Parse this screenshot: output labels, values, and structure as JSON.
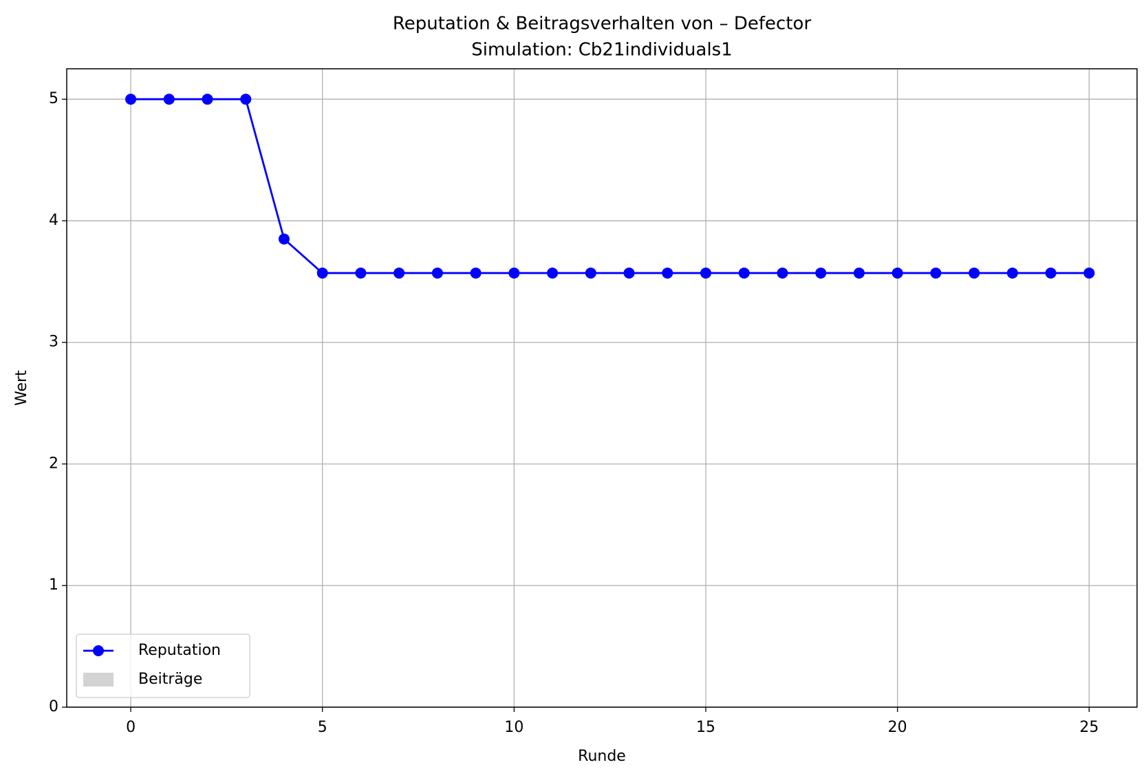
{
  "chart_data": {
    "type": "line",
    "title": "Reputation & Beitragsverhalten von – Defector",
    "subtitle": "Simulation: Cb21individuals1",
    "x_label": "Runde",
    "y_label": "Wert",
    "x": [
      0,
      1,
      2,
      3,
      4,
      5,
      6,
      7,
      8,
      9,
      10,
      11,
      12,
      13,
      14,
      15,
      16,
      17,
      18,
      19,
      20,
      21,
      22,
      23,
      24,
      25
    ],
    "series": [
      {
        "name": "Reputation",
        "color": "#0000ff",
        "type": "line",
        "values": [
          5,
          5,
          5,
          5,
          3.85,
          3.57,
          3.57,
          3.57,
          3.57,
          3.57,
          3.57,
          3.57,
          3.57,
          3.57,
          3.57,
          3.57,
          3.57,
          3.57,
          3.57,
          3.57,
          3.57,
          3.57,
          3.57,
          3.57,
          3.57,
          3.57
        ]
      },
      {
        "name": "Beiträge",
        "color": "#d3d3d3",
        "type": "bar",
        "values": [
          0,
          0,
          0,
          0,
          0,
          0,
          0,
          0,
          0,
          0,
          0,
          0,
          0,
          0,
          0,
          0,
          0,
          0,
          0,
          0,
          0,
          0,
          0,
          0,
          0,
          0
        ]
      }
    ],
    "xlim": [
      -1.67,
      26.25
    ],
    "xticks": [
      0,
      5,
      10,
      15,
      20,
      25
    ],
    "ylim": [
      0,
      5.25
    ],
    "yticks": [
      0,
      1,
      2,
      3,
      4,
      5
    ],
    "grid": true,
    "legend": "lower left"
  }
}
